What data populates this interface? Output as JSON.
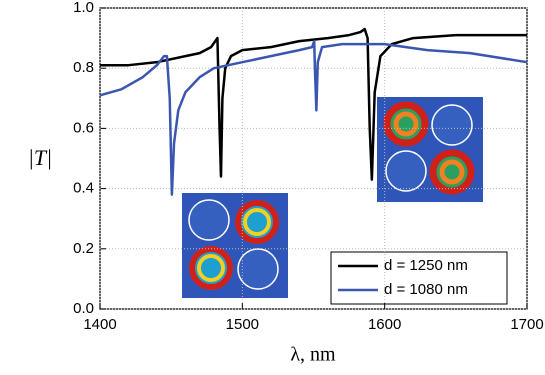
{
  "chart_data": {
    "type": "line",
    "x_label": "λ, nm",
    "y_label": "|T|",
    "xlim": [
      1400,
      1700
    ],
    "xticks": [
      1400,
      1500,
      1600,
      1700
    ],
    "ylim": [
      0,
      1
    ],
    "yticks": [
      {
        "value": 0,
        "label": "0.0"
      },
      0.2,
      0.4,
      0.6,
      0.8,
      {
        "value": 1,
        "label": "1.0"
      }
    ],
    "grid": true,
    "legend": "lower right",
    "series": [
      {
        "name": "d = 1250 nm",
        "color": "#000000",
        "x": [
          1400,
          1420,
          1440,
          1460,
          1470,
          1478,
          1481,
          1482.5,
          1484,
          1485,
          1486,
          1488,
          1492,
          1500,
          1520,
          1540,
          1560,
          1575,
          1583,
          1586,
          1588,
          1589.5,
          1591,
          1593,
          1597,
          1605,
          1620,
          1650,
          1680,
          1700
        ],
        "values": [
          0.81,
          0.81,
          0.82,
          0.84,
          0.85,
          0.87,
          0.89,
          0.9,
          0.6,
          0.44,
          0.7,
          0.8,
          0.84,
          0.86,
          0.87,
          0.89,
          0.9,
          0.91,
          0.92,
          0.93,
          0.9,
          0.6,
          0.43,
          0.72,
          0.84,
          0.88,
          0.9,
          0.91,
          0.91,
          0.91
        ]
      },
      {
        "name": "d = 1080 nm",
        "color": "#3a56b0",
        "x": [
          1400,
          1415,
          1430,
          1440,
          1445,
          1447,
          1449,
          1450.5,
          1452,
          1455,
          1460,
          1470,
          1480,
          1500,
          1520,
          1540,
          1549,
          1550.5,
          1551,
          1552,
          1553,
          1556,
          1570,
          1600,
          1630,
          1660,
          1700
        ],
        "values": [
          0.71,
          0.73,
          0.77,
          0.81,
          0.84,
          0.84,
          0.7,
          0.38,
          0.55,
          0.66,
          0.72,
          0.77,
          0.8,
          0.82,
          0.84,
          0.86,
          0.87,
          0.89,
          0.8,
          0.66,
          0.82,
          0.87,
          0.88,
          0.88,
          0.86,
          0.85,
          0.82
        ]
      }
    ]
  }
}
